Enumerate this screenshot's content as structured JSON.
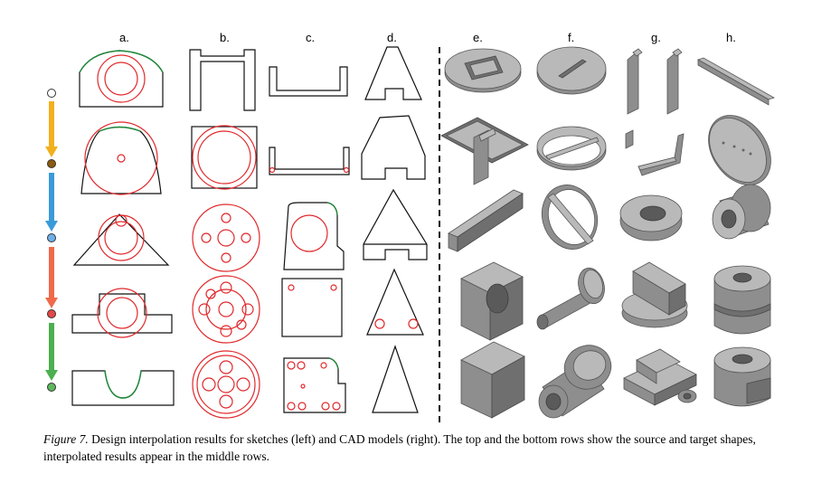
{
  "columns": {
    "sketches": [
      "a.",
      "b.",
      "c.",
      "d."
    ],
    "cad_models": [
      "e.",
      "f.",
      "g.",
      "h."
    ]
  },
  "colors": {
    "sketch_stroke": "#111111",
    "circle_stroke": "#e0282b",
    "arc_stroke": "#1e8a3a",
    "cad_gray": "#9a9a9a",
    "arrow_yellow": "#f2b01e",
    "arrow_blue": "#3a9ad9",
    "arrow_red": "#f06a4a",
    "arrow_green": "#4caf50",
    "dot_brown": "#8b5a10",
    "dot_blue": "#6fb0e8",
    "dot_red": "#e44848",
    "dot_green": "#5cb85c"
  },
  "caption": {
    "label": "Figure 7.",
    "text": " Design interpolation results for sketches (left) and CAD models (right). The top and the bottom rows show the source and target shapes, interpolated results appear in the middle rows."
  }
}
